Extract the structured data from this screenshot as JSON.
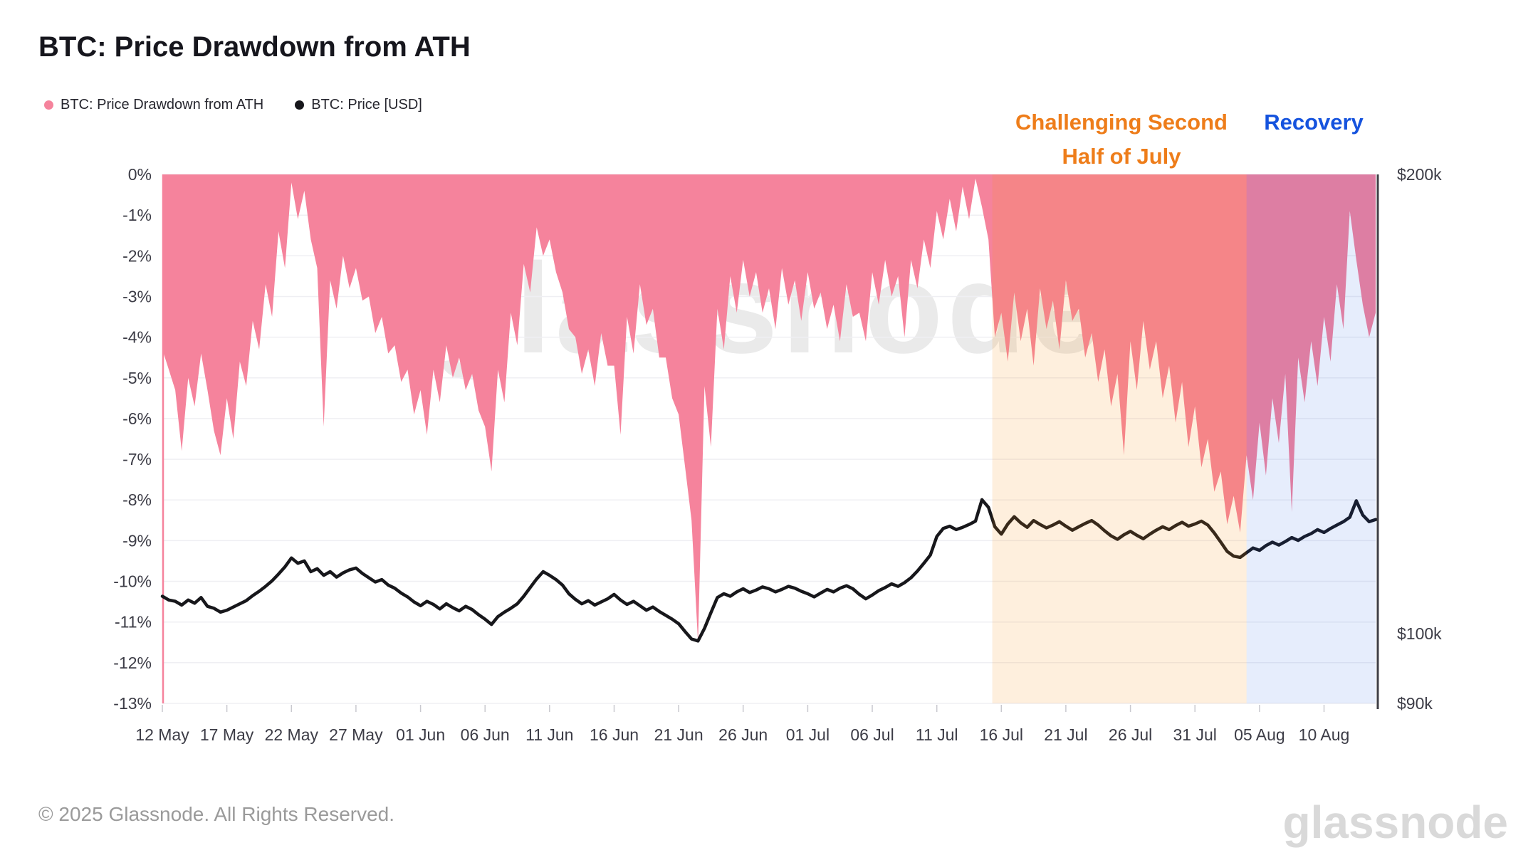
{
  "title": "BTC: Price Drawdown from ATH",
  "annotations": [
    {
      "lines": [
        "Challenging Second",
        "Half of July"
      ],
      "color": "#EE7D1A"
    },
    {
      "lines": [
        "Recovery"
      ],
      "color": "#1553DE"
    }
  ],
  "watermark": "glassnode",
  "footer": {
    "copyright": "© 2025 Glassnode. All Rights Reserved.",
    "brand": "glassnode"
  },
  "chart_data": {
    "type": "area",
    "title": "BTC: Price Drawdown from ATH",
    "x_domain_days": 94,
    "x_start_label": "12 May",
    "x_ticks": [
      {
        "label": "12 May",
        "day": 0
      },
      {
        "label": "17 May",
        "day": 5
      },
      {
        "label": "22 May",
        "day": 10
      },
      {
        "label": "27 May",
        "day": 15
      },
      {
        "label": "01 Jun",
        "day": 20
      },
      {
        "label": "06 Jun",
        "day": 25
      },
      {
        "label": "11 Jun",
        "day": 30
      },
      {
        "label": "16 Jun",
        "day": 35
      },
      {
        "label": "21 Jun",
        "day": 40
      },
      {
        "label": "26 Jun",
        "day": 45
      },
      {
        "label": "01 Jul",
        "day": 50
      },
      {
        "label": "06 Jul",
        "day": 55
      },
      {
        "label": "11 Jul",
        "day": 60
      },
      {
        "label": "16 Jul",
        "day": 65
      },
      {
        "label": "21 Jul",
        "day": 70
      },
      {
        "label": "26 Jul",
        "day": 75
      },
      {
        "label": "31 Jul",
        "day": 80
      },
      {
        "label": "05 Aug",
        "day": 85
      },
      {
        "label": "10 Aug",
        "day": 90
      }
    ],
    "y_left": {
      "unit": "%",
      "max": 0,
      "min": -13,
      "grid": true,
      "ticks": [
        {
          "label": "0%",
          "value": 0
        },
        {
          "label": "-1%",
          "value": -1
        },
        {
          "label": "-2%",
          "value": -2
        },
        {
          "label": "-3%",
          "value": -3
        },
        {
          "label": "-4%",
          "value": -4
        },
        {
          "label": "-5%",
          "value": -5
        },
        {
          "label": "-6%",
          "value": -6
        },
        {
          "label": "-7%",
          "value": -7
        },
        {
          "label": "-8%",
          "value": -8
        },
        {
          "label": "-9%",
          "value": -9
        },
        {
          "label": "-10%",
          "value": -10
        },
        {
          "label": "-11%",
          "value": -11
        },
        {
          "label": "-12%",
          "value": -12
        },
        {
          "label": "-13%",
          "value": -13
        }
      ]
    },
    "y_right": {
      "unit": "USD",
      "scale": "log",
      "ticks": [
        {
          "label": "$200k",
          "value": 200
        },
        {
          "label": "$100k",
          "value": 100
        },
        {
          "label": "$90k",
          "value": 90
        }
      ]
    },
    "regions": [
      {
        "label": "Challenging Second Half of July",
        "from_day": 64.3,
        "to_day": 84.0,
        "color": "rgba(247,147,26,0.15)"
      },
      {
        "label": "Recovery",
        "from_day": 84.0,
        "to_day": 94.0,
        "color": "rgba(26,92,232,0.11)"
      }
    ],
    "series": [
      {
        "name": "BTC: Price Drawdown from ATH",
        "type": "area",
        "axis": "left",
        "unit": "%",
        "color": "#F5839C",
        "values": [
          -4.3,
          -4.8,
          -5.3,
          -6.8,
          -5.0,
          -5.7,
          -4.4,
          -5.3,
          -6.3,
          -6.9,
          -5.5,
          -6.5,
          -4.6,
          -5.2,
          -3.6,
          -4.3,
          -2.7,
          -3.5,
          -1.4,
          -2.3,
          -0.2,
          -1.1,
          -0.4,
          -1.6,
          -2.3,
          -6.2,
          -2.6,
          -3.3,
          -2.0,
          -2.8,
          -2.3,
          -3.1,
          -3.0,
          -3.9,
          -3.5,
          -4.4,
          -4.2,
          -5.1,
          -4.8,
          -5.9,
          -5.3,
          -6.4,
          -4.8,
          -5.6,
          -4.2,
          -5.0,
          -4.5,
          -5.3,
          -4.9,
          -5.8,
          -6.2,
          -7.3,
          -4.8,
          -5.6,
          -3.4,
          -4.2,
          -2.2,
          -2.9,
          -1.3,
          -2.0,
          -1.6,
          -2.4,
          -2.9,
          -3.8,
          -4.0,
          -4.9,
          -4.3,
          -5.2,
          -3.9,
          -4.7,
          -4.7,
          -6.4,
          -3.5,
          -4.4,
          -2.7,
          -3.7,
          -3.3,
          -4.5,
          -4.5,
          -5.5,
          -5.9,
          -7.2,
          -8.5,
          -11.5,
          -5.2,
          -6.7,
          -3.3,
          -4.3,
          -2.5,
          -3.4,
          -2.1,
          -3.0,
          -2.4,
          -3.4,
          -2.8,
          -3.8,
          -2.3,
          -3.2,
          -2.6,
          -3.6,
          -2.4,
          -3.3,
          -2.9,
          -3.8,
          -3.2,
          -4.1,
          -2.7,
          -3.5,
          -3.4,
          -4.1,
          -2.4,
          -3.2,
          -2.1,
          -3.0,
          -2.5,
          -4.0,
          -2.1,
          -2.8,
          -1.6,
          -2.3,
          -0.9,
          -1.6,
          -0.6,
          -1.4,
          -0.3,
          -1.1,
          -0.1,
          -0.8,
          -1.6,
          -4.0,
          -3.4,
          -4.6,
          -2.9,
          -4.1,
          -3.3,
          -4.7,
          -2.8,
          -3.8,
          -3.1,
          -4.3,
          -2.6,
          -3.6,
          -3.3,
          -4.5,
          -3.9,
          -5.1,
          -4.3,
          -5.7,
          -4.9,
          -6.9,
          -4.1,
          -5.3,
          -3.6,
          -4.8,
          -4.1,
          -5.5,
          -4.7,
          -6.1,
          -5.1,
          -6.7,
          -5.7,
          -7.2,
          -6.5,
          -7.8,
          -7.3,
          -8.6,
          -7.9,
          -8.8,
          -6.9,
          -8.0,
          -6.1,
          -7.4,
          -5.5,
          -6.6,
          -4.9,
          -8.3,
          -4.5,
          -5.6,
          -4.1,
          -5.2,
          -3.5,
          -4.6,
          -2.7,
          -3.8,
          -0.9,
          -2.1,
          -3.2,
          -4.0,
          -3.4
        ]
      },
      {
        "name": "BTC: Price [USD]",
        "type": "line",
        "axis": "right",
        "unit": "kUSD",
        "color": "#17171B",
        "values": [
          105.8,
          105.2,
          105.0,
          104.4,
          105.2,
          104.7,
          105.6,
          104.2,
          103.9,
          103.3,
          103.6,
          104.1,
          104.6,
          105.1,
          105.9,
          106.6,
          107.4,
          108.3,
          109.4,
          110.6,
          112.1,
          111.2,
          111.6,
          109.8,
          110.3,
          109.2,
          109.8,
          108.9,
          109.6,
          110.1,
          110.4,
          109.5,
          108.8,
          108.1,
          108.5,
          107.6,
          107.1,
          106.3,
          105.7,
          104.9,
          104.3,
          105.0,
          104.5,
          103.8,
          104.6,
          104.0,
          103.5,
          104.2,
          103.7,
          102.9,
          102.2,
          101.4,
          102.6,
          103.3,
          103.9,
          104.6,
          105.8,
          107.2,
          108.6,
          109.8,
          109.2,
          108.5,
          107.6,
          106.2,
          105.3,
          104.6,
          105.1,
          104.4,
          104.9,
          105.4,
          106.1,
          105.2,
          104.5,
          105.0,
          104.3,
          103.6,
          104.1,
          103.4,
          102.8,
          102.2,
          101.5,
          100.3,
          99.2,
          98.9,
          100.8,
          103.2,
          105.6,
          106.2,
          105.8,
          106.5,
          107.0,
          106.4,
          106.8,
          107.3,
          107.0,
          106.5,
          106.9,
          107.4,
          107.1,
          106.6,
          106.2,
          105.7,
          106.3,
          106.9,
          106.5,
          107.1,
          107.5,
          107.0,
          106.1,
          105.4,
          106.0,
          106.7,
          107.2,
          107.8,
          107.4,
          108.0,
          108.8,
          109.9,
          111.2,
          112.6,
          115.8,
          117.2,
          117.6,
          117.0,
          117.4,
          117.9,
          118.5,
          122.4,
          121.0,
          117.5,
          116.2,
          118.0,
          119.3,
          118.2,
          117.4,
          118.6,
          117.9,
          117.3,
          117.8,
          118.4,
          117.6,
          116.9,
          117.5,
          118.1,
          118.6,
          117.8,
          116.8,
          115.9,
          115.3,
          116.1,
          116.7,
          116.0,
          115.4,
          116.2,
          116.9,
          117.5,
          117.0,
          117.7,
          118.3,
          117.6,
          118.0,
          118.5,
          117.8,
          116.4,
          114.8,
          113.2,
          112.4,
          112.2,
          113.0,
          113.8,
          113.4,
          114.2,
          114.8,
          114.3,
          114.9,
          115.6,
          115.1,
          115.8,
          116.3,
          117.0,
          116.5,
          117.2,
          117.8,
          118.4,
          119.2,
          122.2,
          119.6,
          118.4,
          118.8
        ]
      }
    ]
  }
}
